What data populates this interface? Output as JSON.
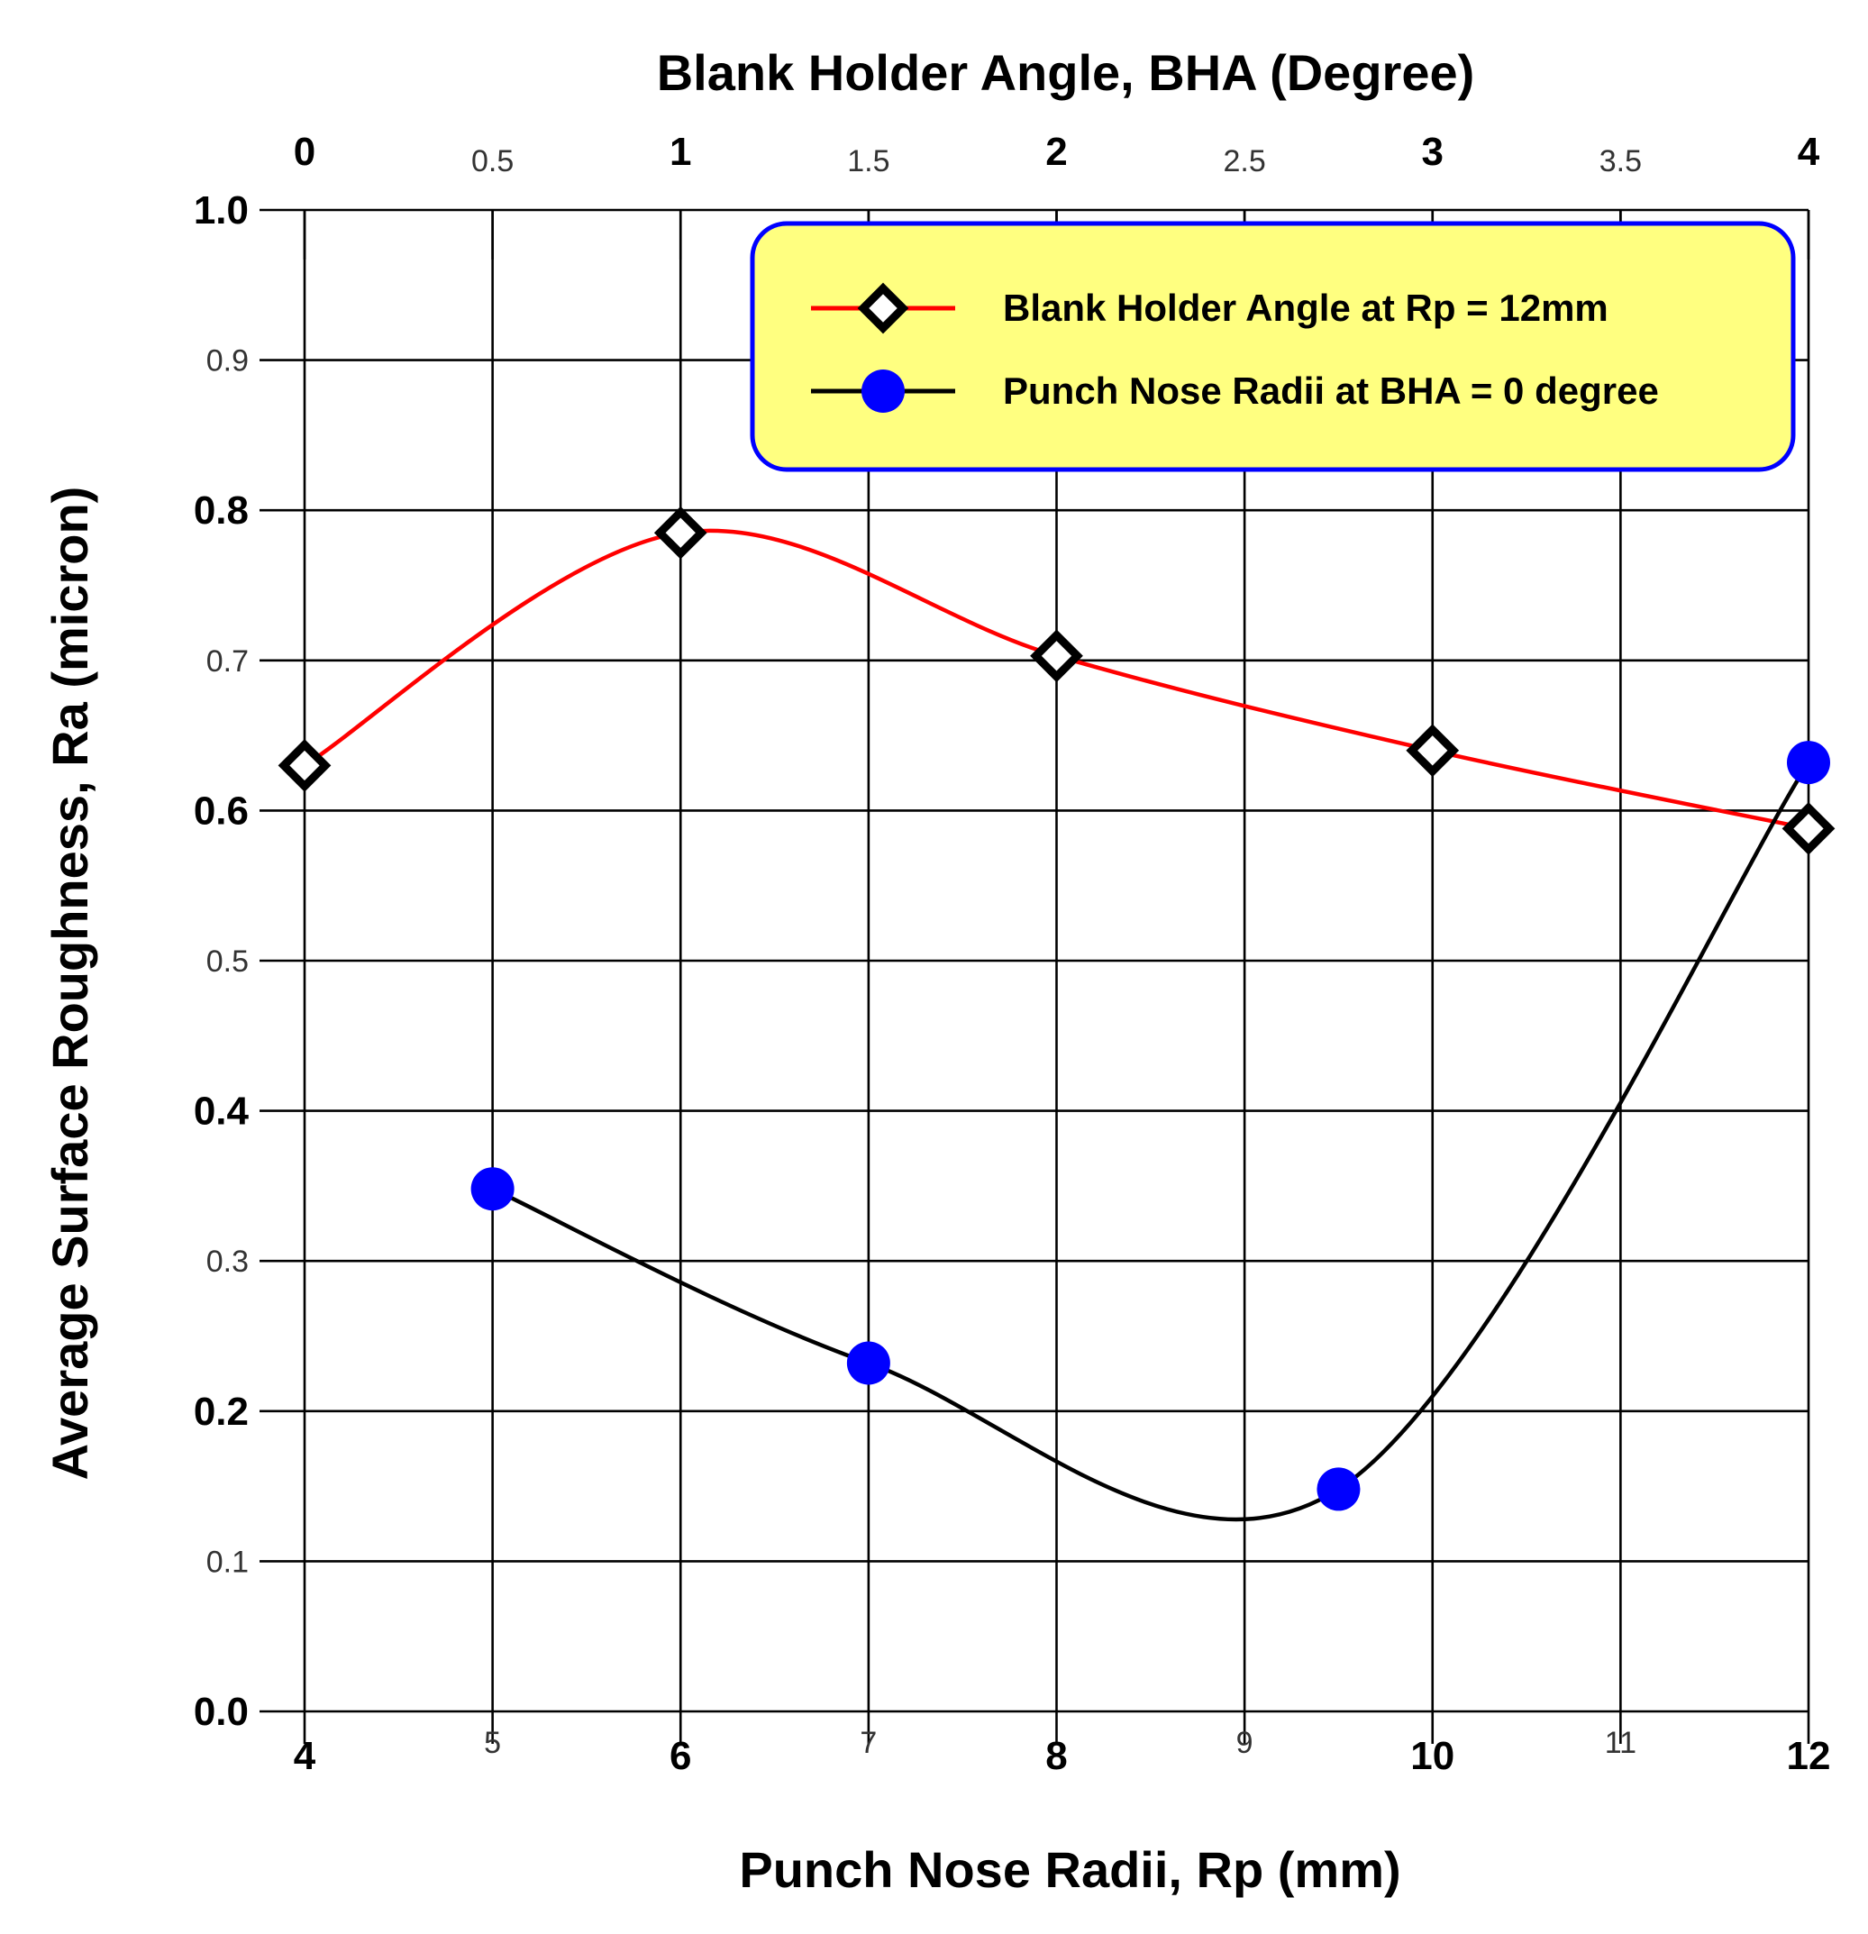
{
  "chart_data": {
    "type": "line",
    "x_bottom": {
      "label": "Punch Nose Radii, Rp (mm)",
      "range": [
        4,
        12
      ],
      "ticks": [
        4,
        5,
        6,
        7,
        8,
        9,
        10,
        11,
        12
      ],
      "tick_labels": [
        "4",
        "5",
        "6",
        "7",
        "8",
        "9",
        "10",
        "11",
        "12"
      ]
    },
    "x_top": {
      "label": "Blank Holder Angle, BHA (Degree)",
      "range": [
        0,
        4
      ],
      "ticks": [
        0,
        0.5,
        1,
        1.5,
        2,
        2.5,
        3,
        3.5,
        4
      ],
      "tick_labels": [
        "0",
        "0.5",
        "1",
        "1.5",
        "2",
        "2.5",
        "3",
        "3.5",
        "4"
      ]
    },
    "y": {
      "label": "Average Surface Roughness, Ra (micron)",
      "range": [
        0.0,
        1.0
      ],
      "ticks": [
        0.0,
        0.1,
        0.2,
        0.3,
        0.4,
        0.5,
        0.6,
        0.7,
        0.8,
        0.9,
        1.0
      ],
      "tick_labels": [
        "0.0",
        "0.1",
        "0.2",
        "0.3",
        "0.4",
        "0.5",
        "0.6",
        "0.7",
        "0.8",
        "0.9",
        "1.0"
      ]
    },
    "grid": true,
    "legend_position": "top-right",
    "series": [
      {
        "name": "Blank Holder Angle at Rp = 12mm",
        "axis": "top",
        "marker": "diamond",
        "line_color": "#ff0000",
        "marker_color": "#000000",
        "x": [
          0,
          1,
          2,
          3,
          4
        ],
        "y": [
          0.63,
          0.785,
          0.703,
          0.64,
          0.588
        ]
      },
      {
        "name": "Punch Nose Radii at BHA = 0 degree",
        "axis": "bottom",
        "marker": "circle",
        "line_color": "#000000",
        "marker_color": "#0000ff",
        "x": [
          5,
          7,
          9.5,
          12
        ],
        "y": [
          0.348,
          0.232,
          0.148,
          0.632
        ]
      }
    ]
  }
}
